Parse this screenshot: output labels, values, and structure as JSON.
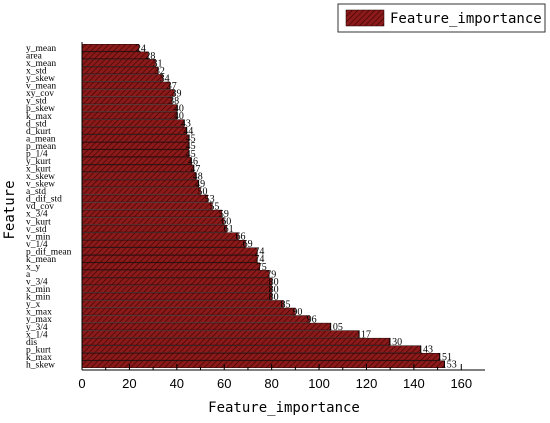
{
  "chart_data": {
    "type": "bar",
    "orientation": "horizontal",
    "xlabel": "Feature_importance",
    "ylabel": "Feature",
    "xlim": [
      0,
      170
    ],
    "xticks": [
      0,
      20,
      40,
      60,
      80,
      100,
      120,
      140,
      160
    ],
    "legend": {
      "label": "Feature_importance",
      "position": "top-right"
    },
    "bar_color": "#8b1a1a",
    "categories": [
      "y_mean",
      "area",
      "x_mean",
      "x_std",
      "y_skew",
      "v_mean",
      "xy_cov",
      "y_std",
      "p_skew",
      "k_max",
      "d_std",
      "d_kurt",
      "a_mean",
      "p_mean",
      "p_1/4",
      "y_kurt",
      "x_kurt",
      "x_skew",
      "v_skew",
      "a_std",
      "d_dif_std",
      "vd_cov",
      "x_3/4",
      "v_kurt",
      "v_std",
      "v_min",
      "v_1/4",
      "p_dif_mean",
      "k_mean",
      "x_y",
      "a",
      "v_3/4",
      "x_min",
      "k_min",
      "y_x",
      "x_max",
      "y_max",
      "y_3/4",
      "x_1/4",
      "dis",
      "p_kurt",
      "k_max",
      "h_skew"
    ],
    "values": [
      24,
      28,
      31,
      32,
      34,
      37,
      39,
      38,
      40,
      40,
      43,
      44,
      45,
      45,
      45,
      46,
      47,
      48,
      49,
      50,
      53,
      55,
      59,
      60,
      61,
      66,
      69,
      74,
      74,
      75,
      79,
      80,
      80,
      80,
      85,
      90,
      96,
      105,
      117,
      130,
      143,
      151,
      153
    ]
  }
}
